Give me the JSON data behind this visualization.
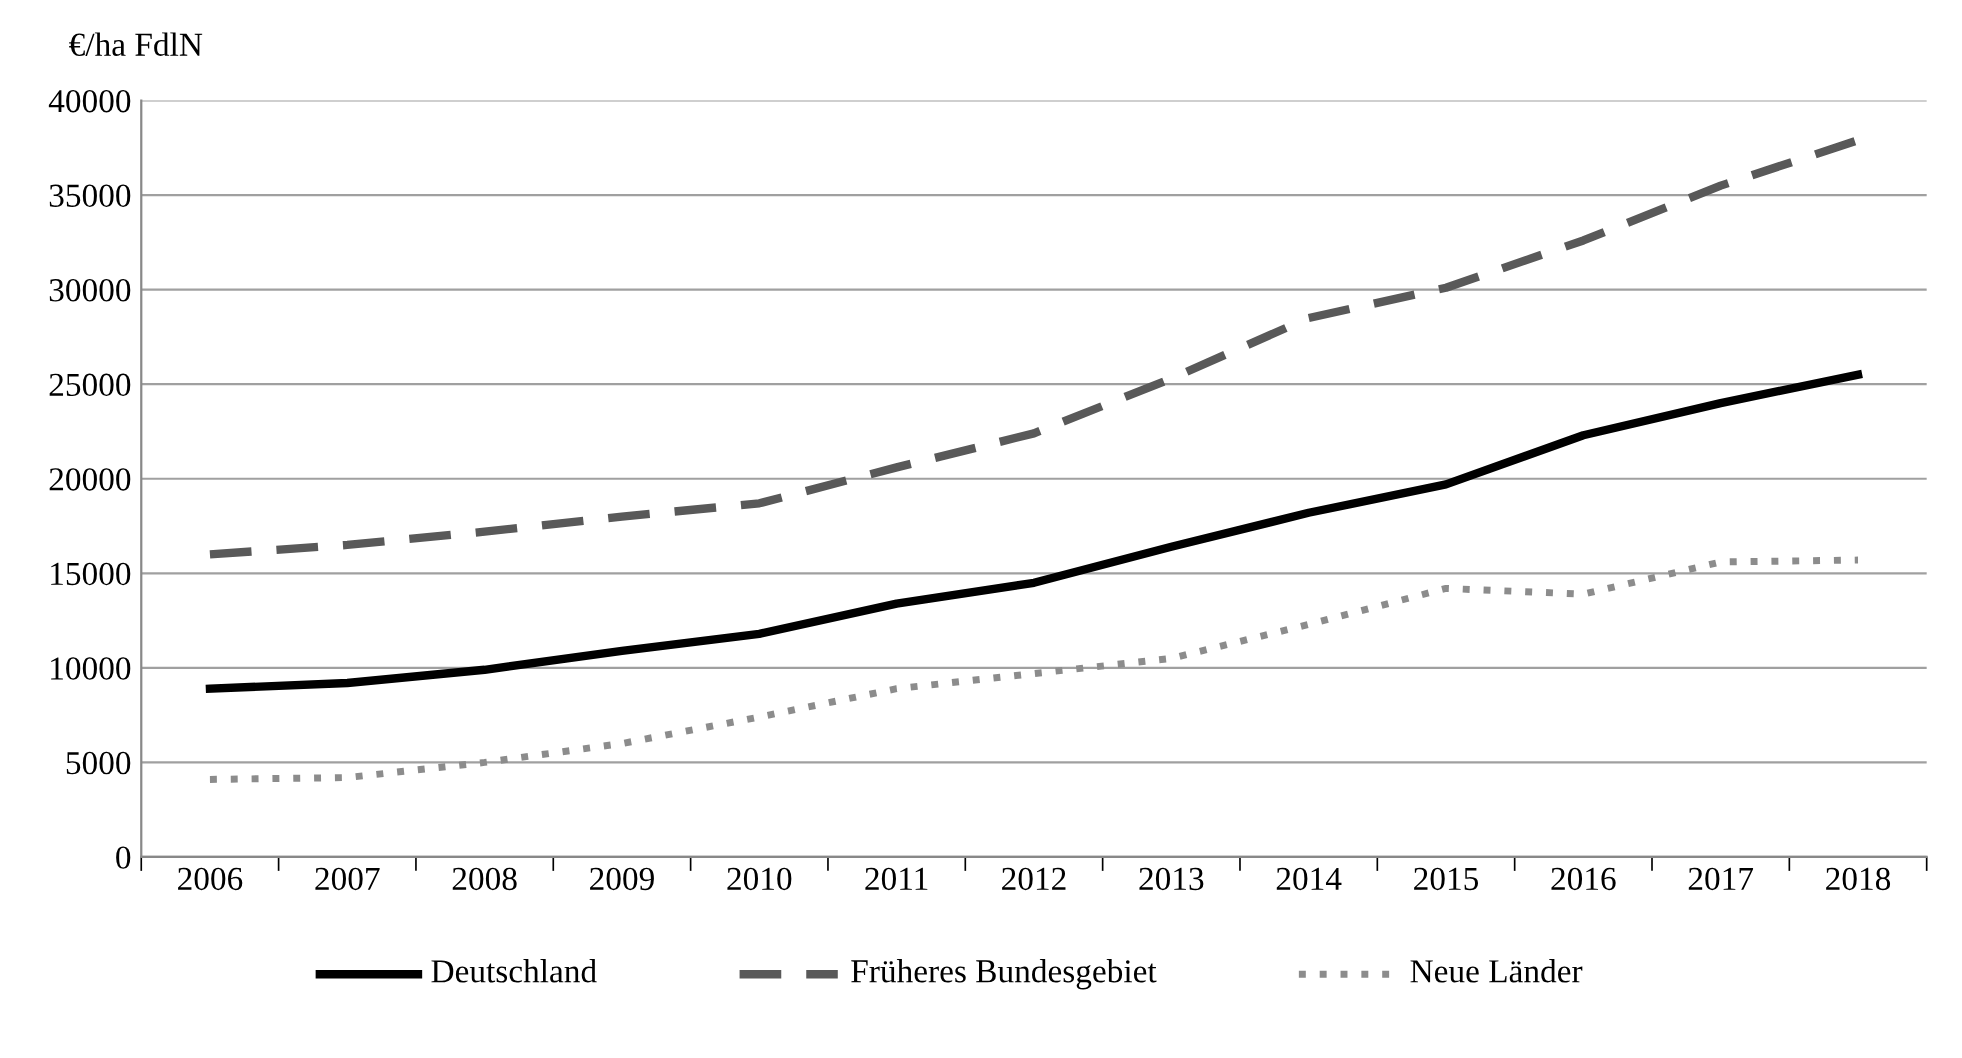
{
  "chart_data": {
    "type": "line",
    "ylabel": "€/ha FdlN",
    "categories": [
      "2006",
      "2007",
      "2008",
      "2009",
      "2010",
      "2011",
      "2012",
      "2013",
      "2014",
      "2015",
      "2016",
      "2017",
      "2018"
    ],
    "series": [
      {
        "name": "Deutschland",
        "color": "#000000",
        "line_style": "solid",
        "values": [
          8900,
          9200,
          9900,
          10900,
          11800,
          13400,
          14500,
          16400,
          18200,
          19700,
          22300,
          24000,
          25500
        ]
      },
      {
        "name": "Früheres Bundesgebiet",
        "color": "#595959",
        "line_style": "dashed",
        "values": [
          16000,
          16500,
          17200,
          18000,
          18700,
          20600,
          22400,
          25300,
          28500,
          30100,
          32600,
          35500,
          37900
        ]
      },
      {
        "name": "Neue Länder",
        "color": "#8c8c8c",
        "line_style": "dotted",
        "values": [
          4100,
          4200,
          5000,
          6000,
          7400,
          8900,
          9700,
          10500,
          12300,
          14200,
          13900,
          15600,
          15700
        ]
      }
    ],
    "ylim": [
      0,
      40000
    ],
    "yticks": [
      0,
      5000,
      10000,
      15000,
      20000,
      25000,
      30000,
      35000,
      40000
    ],
    "grid": "y",
    "legend": "bottom",
    "marker": "none"
  }
}
